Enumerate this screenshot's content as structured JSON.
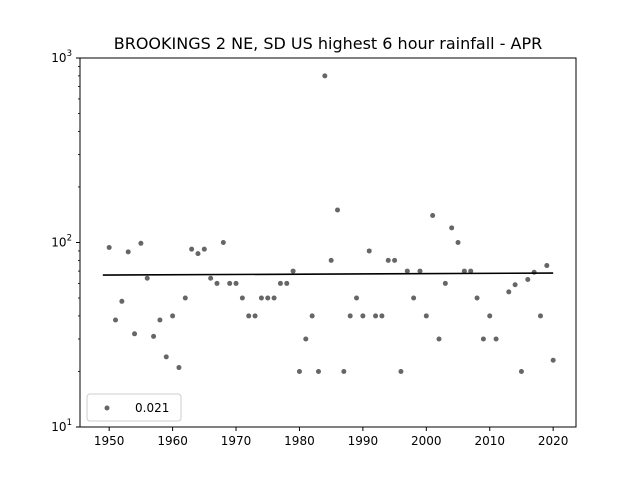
{
  "chart_data": {
    "type": "scatter",
    "title": "BROOKINGS 2 NE, SD US highest 6 hour rainfall - APR",
    "xlabel": "",
    "ylabel": "",
    "xlim": [
      1945.4,
      2023.6
    ],
    "ylim": [
      10,
      1000
    ],
    "y_scale": "log",
    "x_ticks": [
      1950,
      1960,
      1970,
      1980,
      1990,
      2000,
      2010,
      2020
    ],
    "y_ticks": [
      {
        "value": 10,
        "base": "10",
        "exp": "1"
      },
      {
        "value": 100,
        "base": "10",
        "exp": "2"
      },
      {
        "value": 1000,
        "base": "10",
        "exp": "3"
      }
    ],
    "grid": false,
    "legend_position": "lower-left",
    "colors": {
      "points": "#555555",
      "trend": "#000000"
    },
    "series": [
      {
        "name": "0.021",
        "x": [
          1950,
          1951,
          1952,
          1953,
          1954,
          1955,
          1956,
          1957,
          1958,
          1959,
          1960,
          1961,
          1962,
          1963,
          1964,
          1965,
          1966,
          1967,
          1968,
          1969,
          1970,
          1971,
          1972,
          1973,
          1974,
          1975,
          1976,
          1977,
          1978,
          1979,
          1980,
          1981,
          1982,
          1983,
          1984,
          1985,
          1986,
          1987,
          1988,
          1989,
          1990,
          1991,
          1992,
          1993,
          1994,
          1995,
          1996,
          1997,
          1998,
          1999,
          2000,
          2001,
          2002,
          2003,
          2004,
          2005,
          2006,
          2007,
          2008,
          2009,
          2010,
          2011,
          2013,
          2014,
          2015,
          2016,
          2017,
          2018,
          2019,
          2020
        ],
        "y": [
          94,
          38,
          48,
          89,
          32,
          99,
          64,
          31,
          38,
          24,
          40,
          21,
          50,
          92,
          87,
          92,
          64,
          60,
          100,
          60,
          60,
          50,
          40,
          40,
          50,
          50,
          50,
          60,
          60,
          70,
          20,
          30,
          40,
          20,
          800,
          80,
          150,
          20,
          40,
          50,
          40,
          90,
          40,
          40,
          80,
          80,
          20,
          70,
          50,
          70,
          40,
          140,
          30,
          60,
          120,
          100,
          70,
          70,
          50,
          30,
          40,
          30,
          54,
          59,
          20,
          63,
          69,
          40,
          75,
          23
        ]
      }
    ],
    "trend_line": {
      "x": [
        1949,
        2020
      ],
      "y": [
        66.6,
        68.3
      ]
    }
  }
}
